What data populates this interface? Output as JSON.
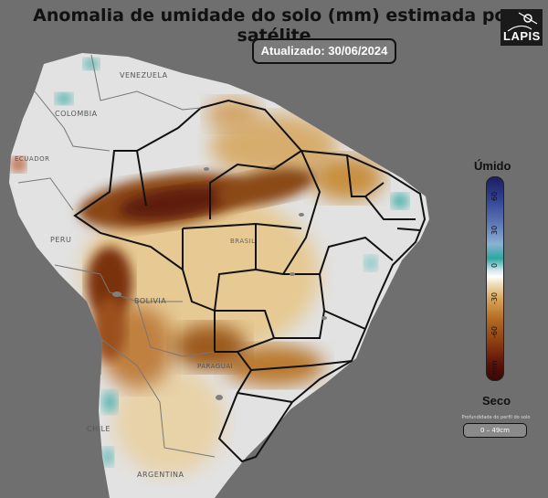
{
  "title": "Anomalia de umidade do solo (mm) estimada por satélite",
  "updated": "Atualizado: 30/06/2024",
  "logo": "LAPIS",
  "legend": {
    "top_label": "Úmido",
    "bottom_label": "Seco",
    "ticks": [
      "60",
      "30",
      "0",
      "-30",
      "-60",
      "mm"
    ],
    "depth_title": "Profundidade do perfil do solo",
    "depth_value": "0 – 49cm"
  },
  "countries": {
    "venezuela": "VENEZUELA",
    "colombia": "COLOMBIA",
    "ecuador": "ECUADOR",
    "peru": "PERU",
    "bolivia": "BOLIVIA",
    "paraguay": "PARAGUAI",
    "chile": "CHILE",
    "argentina": "ARGENTINA",
    "brasil": "BRASIL"
  },
  "colors": {
    "ocean": "#6f6f6f",
    "land_neutral": "#e2e2e2",
    "dry": "#6b2b0c",
    "wet": "#2f3f92"
  }
}
